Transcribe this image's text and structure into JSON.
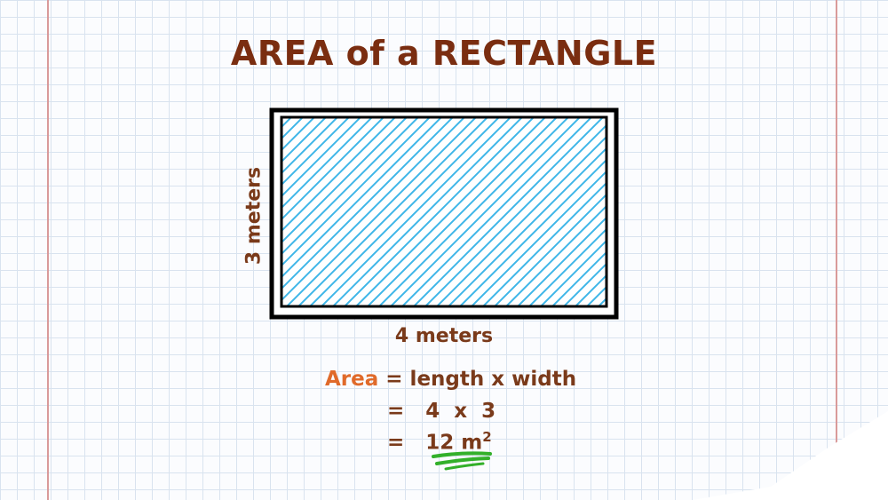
{
  "title": "AREA of a RECTANGLE",
  "labels": {
    "height": "3 meters",
    "width": "4 meters"
  },
  "formula": {
    "area_word": "Area",
    "line1_rest": "= length x width",
    "line2": "=   4  x  3",
    "line3_prefix": "=   ",
    "line3_value": "12 m",
    "line3_exponent": "2"
  },
  "colors": {
    "title": "#7a2d10",
    "label": "#7a3a1a",
    "area_word": "#e06a2a",
    "hatch": "#3fb6e8",
    "outline": "#000000",
    "underline": "#33b02a",
    "margin_line": "#d99a9a"
  }
}
